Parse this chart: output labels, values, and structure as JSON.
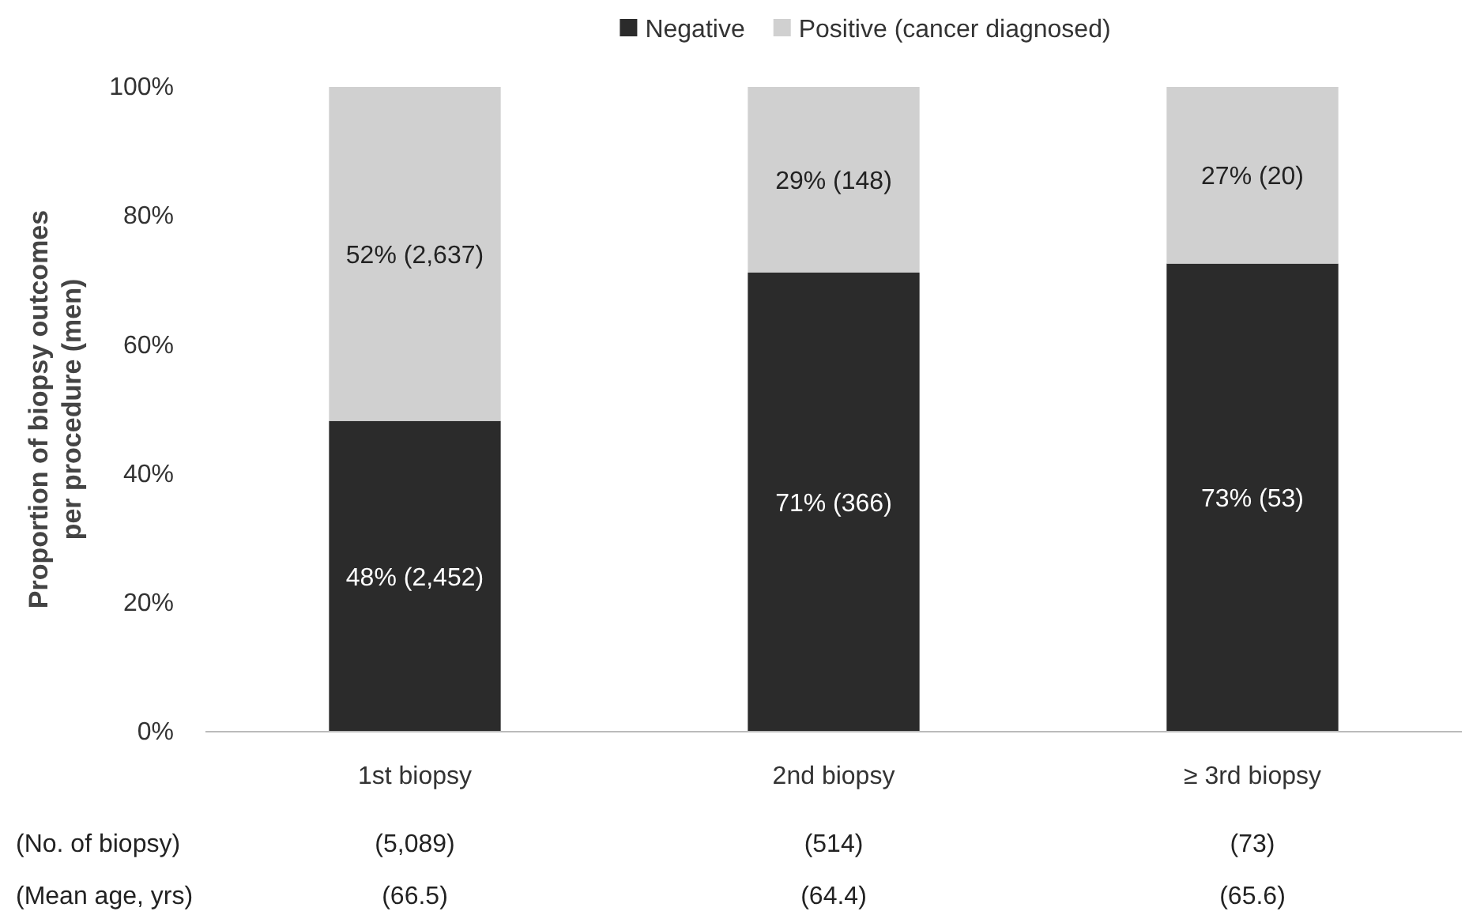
{
  "chart_data": {
    "type": "bar",
    "stacked": true,
    "ylabel": "Proportion of biopsy outcomes per procedure (men)",
    "categories": [
      "1st biopsy",
      "2nd biopsy",
      "≥ 3rd biopsy"
    ],
    "series": [
      {
        "name": "Negative",
        "color": "#2b2b2b",
        "values": [
          48.2,
          71.2,
          72.6
        ],
        "value_labels": [
          "48% (2,452)",
          "71% (366)",
          "73% (53)"
        ]
      },
      {
        "name": "Positive (cancer diagnosed)",
        "color": "#d0d0d0",
        "values": [
          51.8,
          28.8,
          27.4
        ],
        "value_labels": [
          "52% (2,637)",
          "29% (148)",
          "27% (20)"
        ]
      }
    ],
    "ylim": [
      0,
      100
    ],
    "yticks": [
      {
        "value": 0,
        "label": "0%"
      },
      {
        "value": 20,
        "label": "20%"
      },
      {
        "value": 40,
        "label": "40%"
      },
      {
        "value": 60,
        "label": "60%"
      },
      {
        "value": 80,
        "label": "80%"
      },
      {
        "value": 100,
        "label": "100%"
      }
    ],
    "legend": "top",
    "grid": false,
    "annotations": [
      "(No. of biopsy)",
      "(5,089)",
      "(514)",
      "(73)",
      "(Mean age, yrs)",
      "(66.5)",
      "(64.4)",
      "(65.6)"
    ]
  }
}
